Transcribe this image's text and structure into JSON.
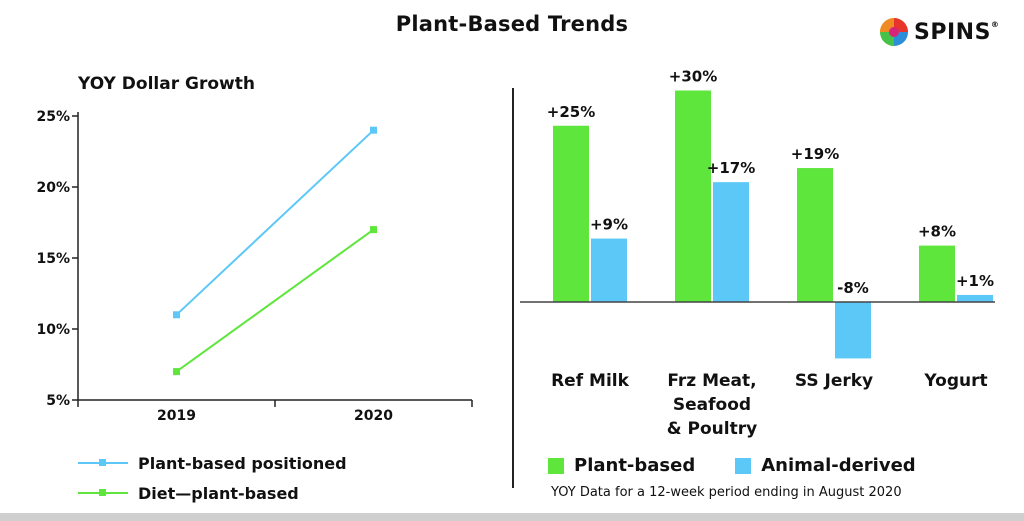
{
  "title": "Plant-Based Trends",
  "logo": {
    "text": "SPINS",
    "reg": "®"
  },
  "colors": {
    "plant_based": "#5ee63c",
    "animal_derived": "#5bc8f8",
    "positioned_line": "#5bc8f8",
    "diet_line": "#5ee63c"
  },
  "left_chart_subtitle": "YOY Dollar Growth",
  "footnote": "YOY  Data for a 12-week period ending in August 2020",
  "chart_data": [
    {
      "type": "line",
      "title": "YOY Dollar Growth",
      "x": [
        "2019",
        "2020"
      ],
      "ylim": [
        5,
        25
      ],
      "yticks": [
        5,
        10,
        15,
        20,
        25
      ],
      "ytick_labels": [
        "5%",
        "10%",
        "15%",
        "20%",
        "25%"
      ],
      "grid": false,
      "legend": "bottom-left",
      "series": [
        {
          "name": "Plant-based positioned",
          "values": [
            11,
            24
          ],
          "color": "#5bc8f8"
        },
        {
          "name": "Diet—plant-based",
          "values": [
            7,
            17
          ],
          "color": "#5ee63c"
        }
      ]
    },
    {
      "type": "bar",
      "categories": [
        "Ref Milk",
        "Frz Meat, Seafood & Poultry",
        "SS Jerky",
        "Yogurt"
      ],
      "category_lines": [
        [
          "Ref Milk"
        ],
        [
          "Frz Meat,",
          "Seafood",
          "& Poultry"
        ],
        [
          "SS Jerky"
        ],
        [
          "Yogurt"
        ]
      ],
      "legend": "bottom",
      "series": [
        {
          "name": "Plant-based",
          "values": [
            25,
            30,
            19,
            8
          ],
          "labels": [
            "+25%",
            "+30%",
            "+19%",
            "+8%"
          ],
          "color": "#5ee63c"
        },
        {
          "name": "Animal-derived",
          "values": [
            9,
            17,
            -8,
            1
          ],
          "labels": [
            "+9%",
            "+17%",
            "-8%",
            "+1%"
          ],
          "color": "#5bc8f8"
        }
      ]
    }
  ]
}
